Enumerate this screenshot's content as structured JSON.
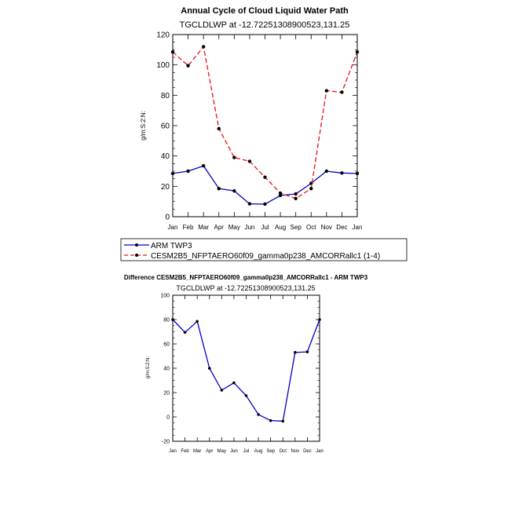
{
  "chart_data": [
    {
      "type": "line",
      "title": "Annual Cycle of Cloud Liquid Water Path",
      "subtitle": "TGCLDLWP  at  -12.72251308900523,131.25",
      "xlabel": "",
      "ylabel": "g/m:S:2:N:",
      "categories": [
        "Jan",
        "Feb",
        "Mar",
        "Apr",
        "May",
        "Jun",
        "Jul",
        "Aug",
        "Sep",
        "Oct",
        "Nov",
        "Dec",
        "Jan"
      ],
      "ylim": [
        0,
        120
      ],
      "yticks": [
        0,
        20,
        40,
        60,
        80,
        100,
        120
      ],
      "series": [
        {
          "name": "ARM TWP3",
          "color": "#0000cc",
          "dash": "solid",
          "values": [
            28.5,
            30.0,
            33.5,
            18.5,
            17.0,
            8.5,
            8.3,
            14.0,
            15.0,
            22.0,
            30.0,
            28.8,
            28.5
          ]
        },
        {
          "name": "CESM2B5_NFPTAERO60f09_gamma0p238_AMCORRallc1 (1-4)",
          "color": "#ee1111",
          "dash": "dashed",
          "values": [
            108.5,
            99.5,
            112.0,
            58.0,
            39.0,
            36.5,
            26.0,
            15.5,
            12.0,
            18.5,
            83.0,
            82.0,
            108.5
          ]
        }
      ],
      "legend": "below"
    },
    {
      "type": "line",
      "title": "Difference CESM2B5_NFPTAERO60f09_gamma0p238_AMCORRallc1 - ARM TWP3",
      "subtitle": "TGCLDLWP  at  -12.72251308900523,131.25",
      "xlabel": "",
      "ylabel": "g/m:S:2:N:",
      "categories": [
        "Jan",
        "Feb",
        "Mar",
        "Apr",
        "May",
        "Jun",
        "Jul",
        "Aug",
        "Sep",
        "Oct",
        "Nov",
        "Dec",
        "Jan"
      ],
      "ylim": [
        -20,
        100
      ],
      "yticks": [
        -20,
        0,
        20,
        40,
        60,
        80,
        100
      ],
      "series": [
        {
          "name": "Difference",
          "color": "#0000cc",
          "dash": "solid",
          "values": [
            80.0,
            69.5,
            78.5,
            40.0,
            22.0,
            28.0,
            17.5,
            2.0,
            -3.0,
            -3.5,
            53.0,
            53.5,
            80.0
          ]
        }
      ]
    }
  ]
}
